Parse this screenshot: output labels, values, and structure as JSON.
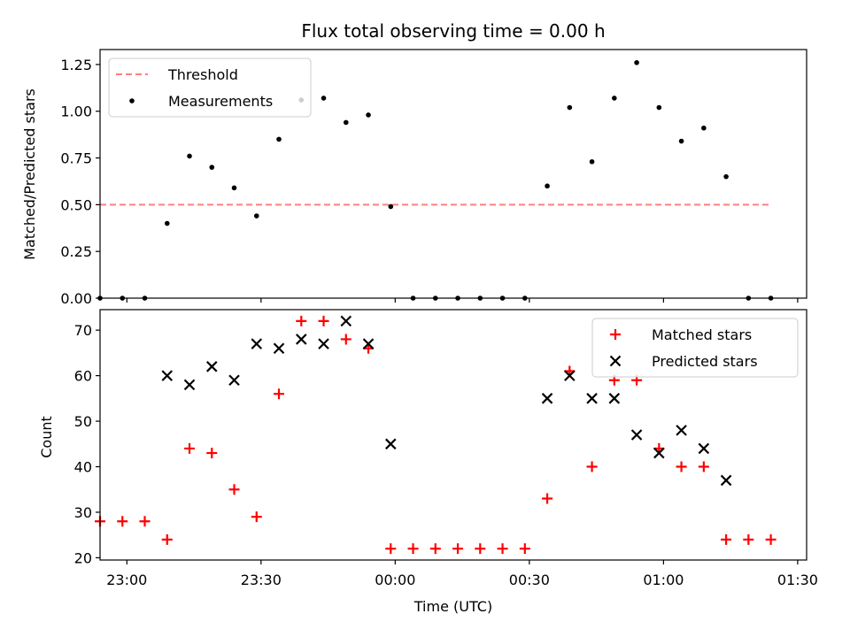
{
  "chart_data": [
    {
      "type": "scatter",
      "title": "Flux total observing time = 0.00 h",
      "xlabel": "",
      "ylabel": "Matched/Predicted stars",
      "xlim": [
        "22:54",
        "01:32"
      ],
      "ylim": [
        0,
        1.33
      ],
      "yticks": [
        "0.00",
        "0.25",
        "0.50",
        "0.75",
        "1.00",
        "1.25"
      ],
      "ytick_values": [
        0,
        0.25,
        0.5,
        0.75,
        1.0,
        1.25
      ],
      "xticks": [
        "23:00",
        "23:30",
        "00:00",
        "00:30",
        "01:00",
        "01:30"
      ],
      "show_xtick_labels": false,
      "grid": false,
      "legend_position": "upper-left",
      "series": [
        {
          "name": "Threshold",
          "style": "dashed-line",
          "color": "#ff7f7f",
          "x": [
            "22:54",
            "01:24"
          ],
          "y": [
            0.5,
            0.5
          ]
        },
        {
          "name": "Measurements",
          "style": "dot",
          "color": "#000000",
          "x": [
            "22:54",
            "22:59",
            "23:04",
            "23:09",
            "23:14",
            "23:19",
            "23:24",
            "23:29",
            "23:34",
            "23:39",
            "23:44",
            "23:49",
            "23:54",
            "23:59",
            "00:04",
            "00:09",
            "00:14",
            "00:19",
            "00:24",
            "00:29",
            "00:34",
            "00:39",
            "00:44",
            "00:49",
            "00:54",
            "00:59",
            "01:04",
            "01:09",
            "01:14",
            "01:19",
            "01:24"
          ],
          "y": [
            0,
            0,
            0,
            0.4,
            0.76,
            0.7,
            0.59,
            0.44,
            0.85,
            1.06,
            1.07,
            0.94,
            0.98,
            0.49,
            0,
            0,
            0,
            0,
            0,
            0,
            0.6,
            1.02,
            0.73,
            1.07,
            1.26,
            1.02,
            0.84,
            0.91,
            0.65,
            0,
            0
          ]
        }
      ]
    },
    {
      "type": "scatter",
      "title": "",
      "xlabel": "Time (UTC)",
      "ylabel": "Count",
      "xlim": [
        "22:54",
        "01:32"
      ],
      "ylim": [
        19.5,
        74.5
      ],
      "yticks": [
        "20",
        "30",
        "40",
        "50",
        "60",
        "70"
      ],
      "ytick_values": [
        20,
        30,
        40,
        50,
        60,
        70
      ],
      "xticks": [
        "23:00",
        "23:30",
        "00:00",
        "00:30",
        "01:00",
        "01:30"
      ],
      "show_xtick_labels": true,
      "grid": false,
      "legend_position": "upper-right",
      "series": [
        {
          "name": "Matched stars",
          "style": "plus",
          "color": "#ff0000",
          "x": [
            "22:54",
            "22:59",
            "23:04",
            "23:09",
            "23:14",
            "23:19",
            "23:24",
            "23:29",
            "23:34",
            "23:39",
            "23:44",
            "23:49",
            "23:54",
            "23:59",
            "00:04",
            "00:09",
            "00:14",
            "00:19",
            "00:24",
            "00:29",
            "00:34",
            "00:39",
            "00:44",
            "00:49",
            "00:54",
            "00:59",
            "01:04",
            "01:09",
            "01:14",
            "01:19",
            "01:24"
          ],
          "y": [
            28,
            28,
            28,
            24,
            44,
            43,
            35,
            29,
            56,
            72,
            72,
            68,
            66,
            22,
            22,
            22,
            22,
            22,
            22,
            22,
            33,
            61,
            40,
            59,
            59,
            44,
            40,
            40,
            24,
            24,
            24
          ]
        },
        {
          "name": "Predicted stars",
          "style": "x",
          "color": "#000000",
          "x": [
            "23:09",
            "23:14",
            "23:19",
            "23:24",
            "23:29",
            "23:34",
            "23:39",
            "23:44",
            "23:49",
            "23:54",
            "23:59",
            "00:34",
            "00:39",
            "00:44",
            "00:49",
            "00:54",
            "00:59",
            "01:04",
            "01:09",
            "01:14"
          ],
          "y": [
            60,
            58,
            62,
            59,
            67,
            66,
            68,
            67,
            72,
            67,
            45,
            55,
            60,
            55,
            55,
            47,
            43,
            48,
            44,
            37
          ]
        }
      ]
    }
  ]
}
